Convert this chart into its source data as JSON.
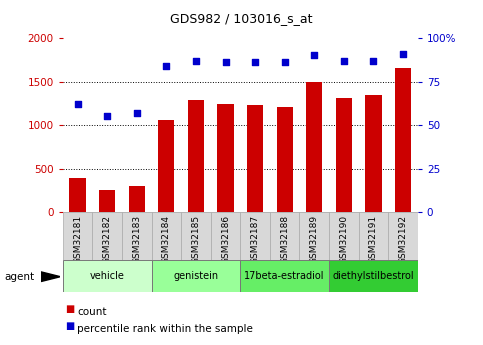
{
  "title": "GDS982 / 103016_s_at",
  "samples": [
    "GSM32181",
    "GSM32182",
    "GSM32183",
    "GSM32184",
    "GSM32185",
    "GSM32186",
    "GSM32187",
    "GSM32188",
    "GSM32189",
    "GSM32190",
    "GSM32191",
    "GSM32192"
  ],
  "counts": [
    390,
    250,
    300,
    1060,
    1285,
    1245,
    1235,
    1210,
    1500,
    1310,
    1340,
    1650
  ],
  "percentiles": [
    62,
    55,
    57,
    84,
    87,
    86,
    86,
    86,
    90,
    87,
    87,
    91
  ],
  "bar_color": "#cc0000",
  "dot_color": "#0000cc",
  "ylim_left": [
    0,
    2000
  ],
  "ylim_right": [
    0,
    100
  ],
  "yticks_left": [
    0,
    500,
    1000,
    1500,
    2000
  ],
  "yticks_right": [
    0,
    25,
    50,
    75,
    100
  ],
  "yticklabels_right": [
    "0",
    "25",
    "50",
    "75",
    "100%"
  ],
  "groups": [
    {
      "label": "vehicle",
      "start": 0,
      "end": 3,
      "color": "#ccffcc"
    },
    {
      "label": "genistein",
      "start": 3,
      "end": 6,
      "color": "#99ff99"
    },
    {
      "label": "17beta-estradiol",
      "start": 6,
      "end": 9,
      "color": "#66ee66"
    },
    {
      "label": "diethylstilbestrol",
      "start": 9,
      "end": 12,
      "color": "#33cc33"
    }
  ],
  "agent_label": "agent",
  "legend_count_label": "count",
  "legend_pct_label": "percentile rank within the sample",
  "left_tick_color": "#cc0000",
  "right_tick_color": "#0000cc",
  "title_color": "#000000",
  "sample_box_color": "#d8d8d8",
  "sample_box_edge": "#aaaaaa"
}
